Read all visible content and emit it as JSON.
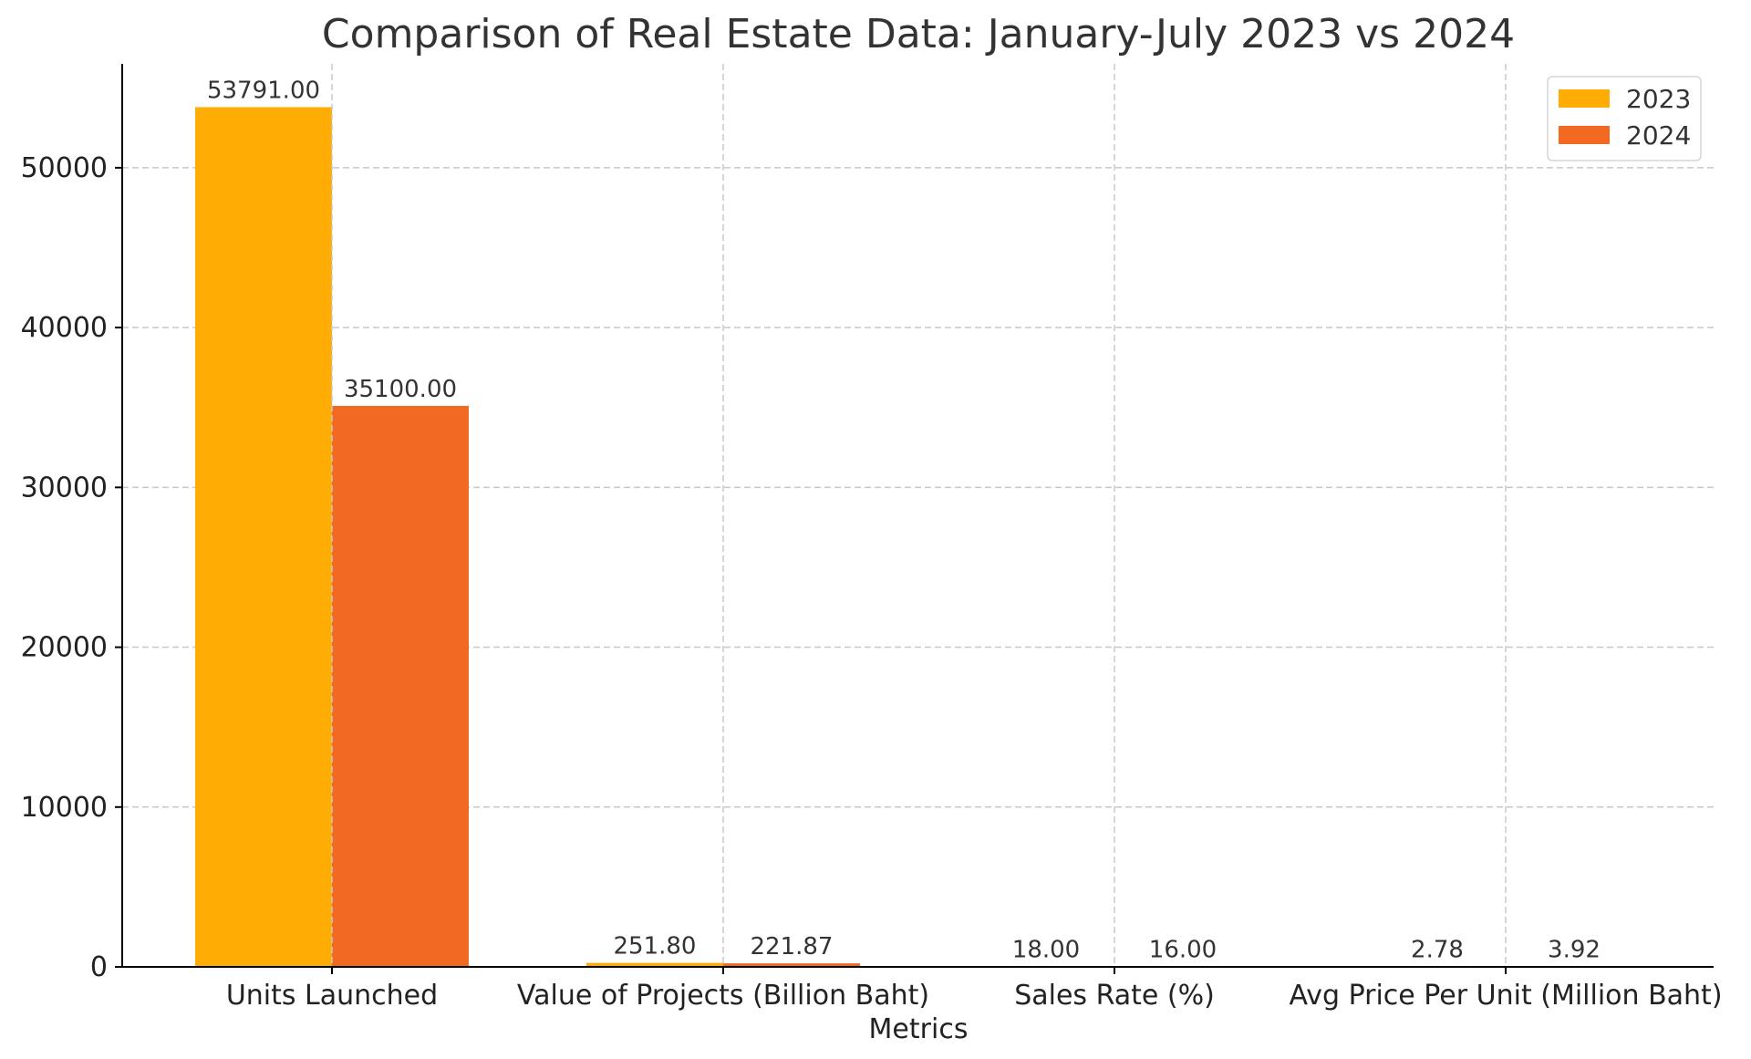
{
  "chart_data": {
    "type": "bar",
    "title": "Comparison of Real Estate Data: January-July 2023 vs 2024",
    "xlabel": "Metrics",
    "ylabel": "",
    "categories": [
      "Units Launched",
      "Value of Projects (Billion Baht)",
      "Sales Rate (%)",
      "Avg Price Per Unit (Million Baht)"
    ],
    "series": [
      {
        "name": "2023",
        "color": "#FFAC05",
        "values": [
          53791.0,
          251.8,
          18.0,
          2.78
        ],
        "labels": [
          "53791.00",
          "251.80",
          "18.00",
          "2.78"
        ]
      },
      {
        "name": "2024",
        "color": "#F26A22",
        "values": [
          35100.0,
          221.87,
          16.0,
          3.92
        ],
        "labels": [
          "35100.00",
          "221.87",
          "16.00",
          "3.92"
        ]
      }
    ],
    "ylim": [
      0,
      56500
    ],
    "yticks": [
      0,
      10000,
      20000,
      30000,
      40000,
      50000
    ],
    "ytick_labels": [
      "0",
      "10000",
      "20000",
      "30000",
      "40000",
      "50000"
    ],
    "grid": true,
    "legend_position": "top-right"
  }
}
